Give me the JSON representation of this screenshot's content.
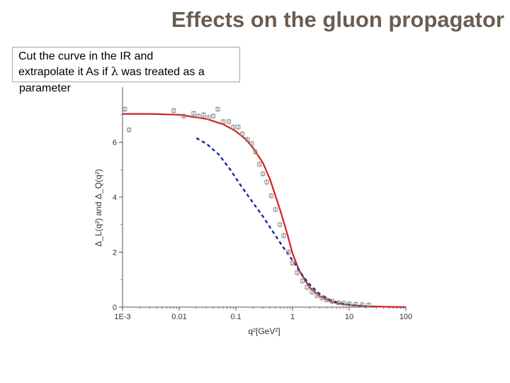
{
  "slide": {
    "title": "Effects on the gluon propagator",
    "note_lines": [
      "Cut  the curve in the IR and",
      "extrapolate  it As if",
      "was treated as a"
    ],
    "note_symbol": "λ",
    "note_tail": "parameter"
  },
  "chart_data": {
    "type": "line",
    "xscale": "log",
    "xlim": [
      0.001,
      100
    ],
    "ylim": [
      0,
      8
    ],
    "xticks": [
      "1E-3",
      "0.01",
      "0.1",
      "1",
      "10",
      "100"
    ],
    "yticks": [
      "0",
      "2",
      "4",
      "6"
    ],
    "xlabel": "q²[GeV²]",
    "ylabel": "Δ_L(q²) and Δ_Q(q²)",
    "series": [
      {
        "style": "solid",
        "color": "#d42020",
        "x": [
          0.001,
          0.003,
          0.01,
          0.03,
          0.06,
          0.1,
          0.15,
          0.2,
          0.3,
          0.4,
          0.5,
          0.6,
          0.8,
          1.0,
          1.3,
          1.7,
          2.0,
          3.0,
          5.0,
          8.0,
          12,
          20,
          50,
          100
        ],
        "y": [
          7.03,
          7.03,
          7.0,
          6.85,
          6.65,
          6.4,
          6.1,
          5.8,
          5.25,
          4.65,
          4.05,
          3.55,
          2.7,
          1.95,
          1.35,
          0.95,
          0.72,
          0.4,
          0.18,
          0.1,
          0.06,
          0.03,
          0.01,
          0.0
        ]
      },
      {
        "style": "dashed",
        "color": "#1a2a9c",
        "x": [
          0.02,
          0.03,
          0.05,
          0.08,
          0.12,
          0.2,
          0.3,
          0.5,
          0.7,
          1.0,
          1.5,
          2.0,
          3.0,
          5.0,
          8.0,
          12,
          20
        ],
        "y": [
          6.15,
          5.95,
          5.55,
          5.0,
          4.45,
          3.8,
          3.3,
          2.6,
          2.15,
          1.7,
          1.15,
          0.82,
          0.48,
          0.22,
          0.12,
          0.07,
          0.04
        ]
      },
      {
        "style": "markers",
        "color": "#8a8a8a",
        "x": [
          0.0011,
          0.0013,
          0.008,
          0.012,
          0.018,
          0.022,
          0.027,
          0.033,
          0.04,
          0.048,
          0.06,
          0.075,
          0.09,
          0.11,
          0.13,
          0.16,
          0.19,
          0.22,
          0.26,
          0.3,
          0.35,
          0.42,
          0.5,
          0.6,
          0.7,
          0.85,
          1.0,
          1.2,
          1.5,
          1.8,
          2.2,
          2.7,
          3.3,
          4.0,
          5.0,
          6.5,
          8.0,
          10,
          13,
          17,
          22
        ],
        "y": [
          7.2,
          6.45,
          7.15,
          6.95,
          7.05,
          6.95,
          7.0,
          6.9,
          6.95,
          7.2,
          6.75,
          6.75,
          6.55,
          6.55,
          6.3,
          6.1,
          5.95,
          5.65,
          5.2,
          4.85,
          4.55,
          4.05,
          3.55,
          3.0,
          2.6,
          2.0,
          1.6,
          1.25,
          0.95,
          0.72,
          0.55,
          0.42,
          0.33,
          0.26,
          0.21,
          0.16,
          0.14,
          0.12,
          0.1,
          0.09,
          0.08
        ]
      }
    ]
  }
}
